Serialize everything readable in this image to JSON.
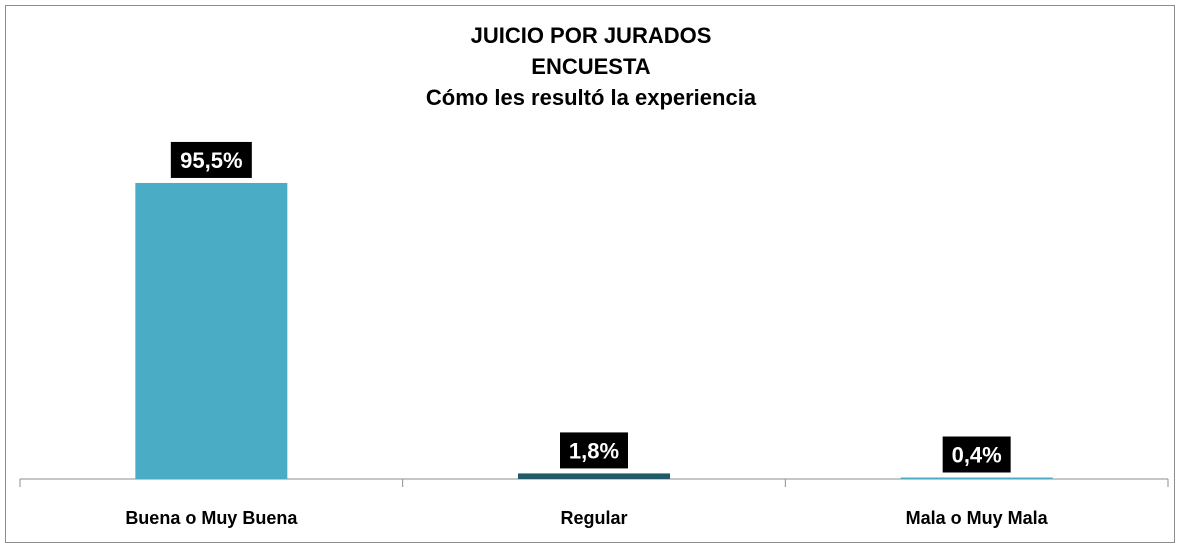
{
  "chart_data": {
    "type": "bar",
    "title": "JUICIO POR JURADOS",
    "subtitle": "ENCUESTA",
    "subtitle2": "Cómo les resultó la experiencia",
    "categories": [
      "Buena o Muy Buena",
      "Regular",
      "Mala o Muy Mala"
    ],
    "values": [
      95.5,
      1.8,
      0.4
    ],
    "data_labels": [
      "95,5%",
      "1,8%",
      "0,4%"
    ],
    "colors": [
      "#4BACC6",
      "#215968",
      "#4BACC6"
    ],
    "ylim": [
      0,
      100
    ],
    "grid": false,
    "legend": "none",
    "data_label_background": "#000000"
  }
}
